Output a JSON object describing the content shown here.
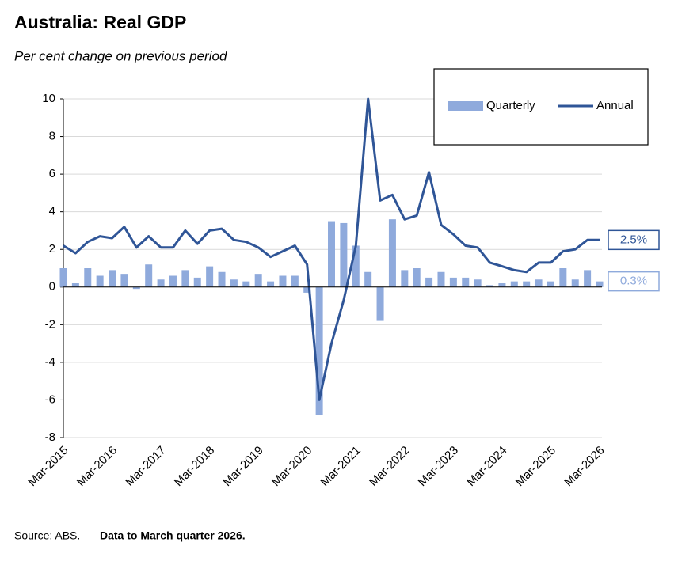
{
  "chart_data": {
    "type": "bar-line",
    "title": "Australia: Real GDP",
    "subtitle": "Per cent change on previous period",
    "source": "Source: ABS.",
    "note": "Data to March quarter 2026.",
    "categories": [
      "Mar-2015",
      null,
      null,
      null,
      "Mar-2016",
      null,
      null,
      null,
      "Mar-2017",
      null,
      null,
      null,
      "Mar-2018",
      null,
      null,
      null,
      "Mar-2019",
      null,
      null,
      null,
      "Mar-2020",
      null,
      null,
      null,
      "Mar-2021",
      null,
      null,
      null,
      "Mar-2022",
      null,
      null,
      null,
      "Mar-2023",
      null,
      null,
      null,
      "Mar-2024",
      null,
      null,
      null,
      "Mar-2025",
      null,
      null,
      null,
      "Mar-2026"
    ],
    "series": [
      {
        "name": "Quarterly",
        "type": "bar",
        "color": "#8faadc",
        "values": [
          1.0,
          0.2,
          1.0,
          0.6,
          0.9,
          0.7,
          -0.1,
          1.2,
          0.4,
          0.6,
          0.9,
          0.5,
          1.1,
          0.8,
          0.4,
          0.3,
          0.7,
          0.3,
          0.6,
          0.6,
          -0.3,
          -6.8,
          3.5,
          3.4,
          2.2,
          0.8,
          -1.8,
          3.6,
          0.9,
          1.0,
          0.5,
          0.8,
          0.5,
          0.5,
          0.4,
          0.1,
          0.2,
          0.3,
          0.3,
          0.4,
          0.3,
          1.0,
          0.4,
          0.9,
          0.3
        ],
        "value_labels": [
          null,
          null,
          null,
          null,
          null,
          null,
          null,
          null,
          null,
          null,
          null,
          null,
          null,
          null,
          null,
          null,
          null,
          null,
          null,
          null,
          null,
          null,
          null,
          null,
          null,
          null,
          null,
          null,
          null,
          null,
          null,
          null,
          null,
          null,
          null,
          null,
          null,
          null,
          null,
          null,
          null,
          null,
          null,
          null,
          "0.3%"
        ]
      },
      {
        "name": "Annual",
        "type": "line",
        "color": "#2f5597",
        "values": [
          2.2,
          1.8,
          2.4,
          2.7,
          2.6,
          3.2,
          2.1,
          2.7,
          2.1,
          2.1,
          3.0,
          2.3,
          3.0,
          3.1,
          2.5,
          2.4,
          2.1,
          1.6,
          1.9,
          2.2,
          1.2,
          -6.0,
          -3.0,
          -0.7,
          2.2,
          10.0,
          4.6,
          4.9,
          3.6,
          3.8,
          6.1,
          3.3,
          2.8,
          2.2,
          2.1,
          1.3,
          1.1,
          0.9,
          0.8,
          1.3,
          1.3,
          1.9,
          2.0,
          2.5,
          2.5
        ],
        "value_labels": [
          null,
          null,
          null,
          null,
          null,
          null,
          null,
          null,
          null,
          null,
          null,
          null,
          null,
          null,
          null,
          null,
          null,
          null,
          null,
          null,
          null,
          null,
          null,
          null,
          null,
          null,
          null,
          null,
          null,
          null,
          null,
          null,
          null,
          null,
          null,
          null,
          null,
          null,
          null,
          null,
          null,
          null,
          null,
          null,
          "2.5%"
        ]
      }
    ],
    "ylim": [
      -8,
      10
    ],
    "yticks": [
      -8,
      -6,
      -4,
      -2,
      0,
      2,
      4,
      6,
      8,
      10
    ],
    "grid": true,
    "legend": "top-right"
  }
}
